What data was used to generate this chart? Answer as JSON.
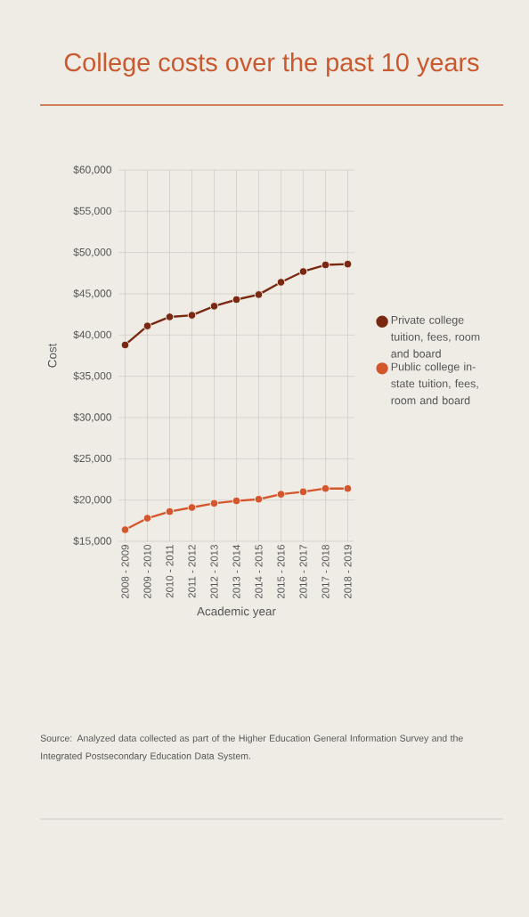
{
  "chart_data": {
    "type": "line",
    "title": "College costs  over the past 10 years",
    "xlabel": "Academic year",
    "ylabel": "Cost",
    "categories": [
      "2008 - 2009",
      "2009 - 2010",
      "2010 - 2011",
      "2011 - 2012",
      "2012 - 2013",
      "2013 - 2014",
      "2014 - 2015",
      "2015 - 2016",
      "2016 - 2017",
      "2017 - 2018",
      "2018 - 2019"
    ],
    "series": [
      {
        "name": "Private college tuition, fees, room and board",
        "color": "#7b2812",
        "values": [
          38800,
          41100,
          42200,
          42400,
          43500,
          44300,
          44900,
          46400,
          47700,
          48500,
          48600
        ]
      },
      {
        "name": "Public college in-state tuition, fees, room and board",
        "color": "#d5562c",
        "values": [
          16400,
          17800,
          18600,
          19100,
          19600,
          19900,
          20100,
          20700,
          21000,
          21400,
          21400
        ]
      }
    ],
    "ylim": [
      15000,
      60000
    ],
    "yticks": [
      {
        "value": 15000,
        "label": "$15,000"
      },
      {
        "value": 20000,
        "label": "$20,000"
      },
      {
        "value": 25000,
        "label": "$25,000"
      },
      {
        "value": 30000,
        "label": "$30,000"
      },
      {
        "value": 35000,
        "label": "$35,000"
      },
      {
        "value": 40000,
        "label": "$40,000"
      },
      {
        "value": 45000,
        "label": "$45,000"
      },
      {
        "value": 50000,
        "label": "$50,000"
      },
      {
        "value": 55000,
        "label": "$55,000"
      },
      {
        "value": 60000,
        "label": "$60,000"
      }
    ],
    "grid": true,
    "legend": "right",
    "marker": "circle",
    "line_style": "solid",
    "annotations": [
      "Source: Analyzed data collected as part of the Higher Education General Information Survey and the Integrated Postsecondary Education Data System."
    ]
  }
}
